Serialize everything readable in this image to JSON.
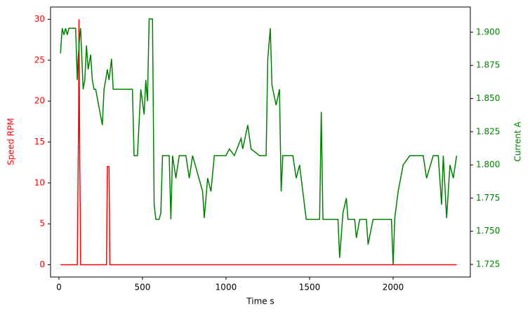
{
  "chart_data": {
    "type": "line",
    "xlabel": "Time s",
    "ylabel": "Speed RPM",
    "y2label": "Current A",
    "xlim": [
      -50,
      2462
    ],
    "ylim": [
      -1.5,
      31.5
    ],
    "y2lim": [
      1.7155,
      1.919
    ],
    "xticks": [
      0,
      500,
      1000,
      1500,
      2000
    ],
    "yticks": [
      0,
      5,
      10,
      15,
      20,
      25,
      30
    ],
    "y2ticks": [
      1.725,
      {
        "value": 1.75,
        "label": "1.750"
      },
      1.775,
      {
        "value": 1.8,
        "label": "1.800"
      },
      1.825,
      {
        "value": 1.85,
        "label": "1.850"
      },
      1.875,
      {
        "value": 1.9,
        "label": "1.900"
      }
    ],
    "series": [
      {
        "name": "Speed RPM",
        "color": "#ff0000",
        "x": [
          10,
          110,
          118,
          120,
          125,
          128,
          130,
          285,
          290,
          300,
          305,
          2380
        ],
        "values": [
          0,
          0,
          18,
          30,
          12,
          6,
          0,
          0,
          12,
          12,
          0,
          0
        ]
      },
      {
        "name": "Current A",
        "color": "#008000",
        "axis": "y2",
        "x": [
          10,
          15,
          20,
          30,
          40,
          50,
          60,
          100,
          110,
          115,
          125,
          130,
          145,
          155,
          165,
          175,
          190,
          200,
          210,
          220,
          260,
          270,
          280,
          290,
          300,
          315,
          325,
          440,
          450,
          470,
          490,
          510,
          520,
          530,
          540,
          560,
          570,
          580,
          600,
          610,
          620,
          660,
          670,
          680,
          700,
          720,
          760,
          780,
          800,
          860,
          870,
          890,
          910,
          930,
          1000,
          1020,
          1050,
          1090,
          1100,
          1130,
          1150,
          1200,
          1240,
          1250,
          1265,
          1275,
          1300,
          1320,
          1330,
          1340,
          1400,
          1420,
          1440,
          1480,
          1560,
          1570,
          1580,
          1670,
          1680,
          1700,
          1720,
          1730,
          1770,
          1780,
          1800,
          1840,
          1850,
          1880,
          1990,
          2000,
          2010,
          2030,
          2060,
          2100,
          2180,
          2200,
          2240,
          2270,
          2290,
          2300,
          2320,
          2340,
          2360,
          2380
        ],
        "values": [
          1.884,
          1.895,
          1.903,
          1.898,
          1.903,
          1.898,
          1.903,
          1.903,
          1.864,
          1.88,
          1.898,
          1.903,
          1.857,
          1.864,
          1.89,
          1.872,
          1.883,
          1.864,
          1.857,
          1.857,
          1.83,
          1.857,
          1.864,
          1.872,
          1.864,
          1.88,
          1.857,
          1.857,
          1.807,
          1.807,
          1.857,
          1.838,
          1.864,
          1.848,
          1.91,
          1.91,
          1.77,
          1.759,
          1.759,
          1.764,
          1.807,
          1.807,
          1.759,
          1.807,
          1.79,
          1.807,
          1.807,
          1.79,
          1.807,
          1.78,
          1.76,
          1.79,
          1.78,
          1.807,
          1.807,
          1.812,
          1.807,
          1.82,
          1.812,
          1.83,
          1.812,
          1.807,
          1.807,
          1.88,
          1.903,
          1.86,
          1.845,
          1.857,
          1.78,
          1.807,
          1.807,
          1.79,
          1.8,
          1.759,
          1.759,
          1.84,
          1.759,
          1.759,
          1.73,
          1.764,
          1.775,
          1.759,
          1.759,
          1.745,
          1.759,
          1.759,
          1.74,
          1.759,
          1.759,
          1.725,
          1.76,
          1.78,
          1.8,
          1.807,
          1.807,
          1.79,
          1.807,
          1.807,
          1.77,
          1.807,
          1.76,
          1.8,
          1.79,
          1.807
        ]
      }
    ]
  }
}
